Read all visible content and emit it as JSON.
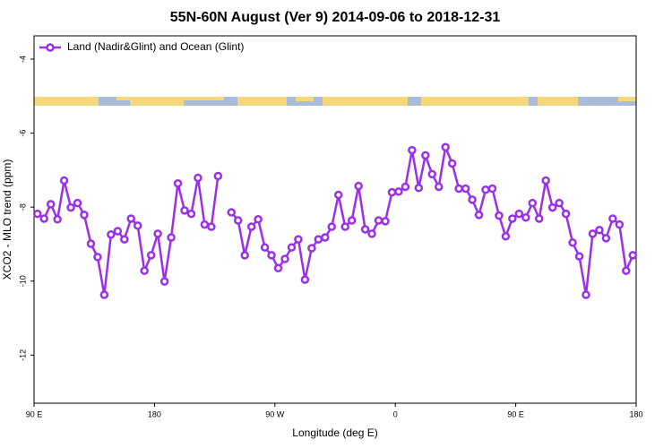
{
  "chart_data": {
    "type": "line",
    "title": "55N-60N August (Ver 9)   2014-09-06 to 2018-12-31",
    "x_label": "Longitude (deg E)",
    "y_label": "XCO2 - MLO trend (ppm)",
    "xlim": [
      90,
      540
    ],
    "ylim": [
      -13.3,
      -3.37
    ],
    "xticks": [
      {
        "value": 90,
        "label": "90 E"
      },
      {
        "value": 180,
        "label": "180"
      },
      {
        "value": 270,
        "label": "90 W"
      },
      {
        "value": 360,
        "label": "0"
      },
      {
        "value": 450,
        "label": "90 E"
      },
      {
        "value": 540,
        "label": "180"
      }
    ],
    "yticks": [
      -4,
      -6,
      -8,
      -10,
      -12
    ],
    "legend": "top-left",
    "x": [
      92.5,
      97.5,
      102.5,
      107.5,
      112.5,
      117.5,
      122.5,
      127.5,
      132.5,
      137.5,
      142.5,
      147.5,
      152.5,
      157.5,
      162.5,
      167.5,
      172.5,
      177.5,
      182.5,
      187.5,
      192.5,
      197.5,
      202.5,
      207.5,
      212.5,
      217.5,
      222.5,
      227.5,
      232.5,
      237.5,
      242.5,
      247.5,
      252.5,
      257.5,
      262.5,
      267.5,
      272.5,
      277.5,
      282.5,
      287.5,
      292.5,
      297.5,
      302.5,
      307.5,
      312.5,
      317.5,
      322.5,
      327.5,
      332.5,
      337.5,
      342.5,
      347.5,
      352.5,
      357.5,
      362.5,
      367.5,
      372.5,
      377.5,
      382.5,
      387.5,
      392.5,
      397.5,
      402.5,
      407.5,
      412.5,
      417.5,
      422.5,
      427.5,
      432.5,
      437.5,
      442.5,
      447.5,
      452.5,
      457.5,
      462.5,
      467.5,
      472.5,
      477.5,
      482.5,
      487.5,
      492.5,
      497.5,
      502.5,
      507.5,
      512.5,
      517.5,
      522.5,
      527.5,
      532.5,
      537.5
    ],
    "series": [
      {
        "name": "Land (Nadir&Glint) and Ocean (Glint)",
        "color": "#9b30e8",
        "values": [
          -8.18,
          -8.31,
          -7.92,
          -8.33,
          -7.28,
          -8.01,
          -7.89,
          -8.21,
          -8.99,
          -9.35,
          -10.37,
          -8.74,
          -8.65,
          -8.87,
          -8.31,
          -8.5,
          -9.72,
          -9.3,
          -8.72,
          -10.01,
          -8.82,
          -7.36,
          -8.09,
          -8.18,
          -7.21,
          -8.47,
          -8.53,
          -7.16,
          null,
          -8.14,
          -8.36,
          -9.3,
          -8.53,
          -8.33,
          -9.09,
          -9.3,
          -9.65,
          -9.4,
          -9.09,
          -8.87,
          -9.96,
          -9.11,
          -8.87,
          -8.82,
          -8.53,
          -7.67,
          -8.53,
          -8.36,
          -7.43,
          -8.6,
          -8.72,
          -8.36,
          -8.38,
          -7.6,
          -7.58,
          -7.45,
          -6.46,
          -7.48,
          -6.6,
          -7.11,
          -7.45,
          -6.38,
          -6.82,
          -7.5,
          -7.5,
          -7.8,
          -8.21,
          -7.53,
          -7.5,
          -8.23,
          -8.79,
          -8.31,
          -8.18,
          -8.28,
          -7.89,
          -8.31,
          -7.28,
          -8.01,
          -7.89,
          -8.18,
          -8.96,
          -9.33,
          -10.37,
          -8.72,
          -8.62,
          -8.84,
          -8.31,
          -8.47,
          -9.72,
          -9.3
        ]
      }
    ]
  }
}
